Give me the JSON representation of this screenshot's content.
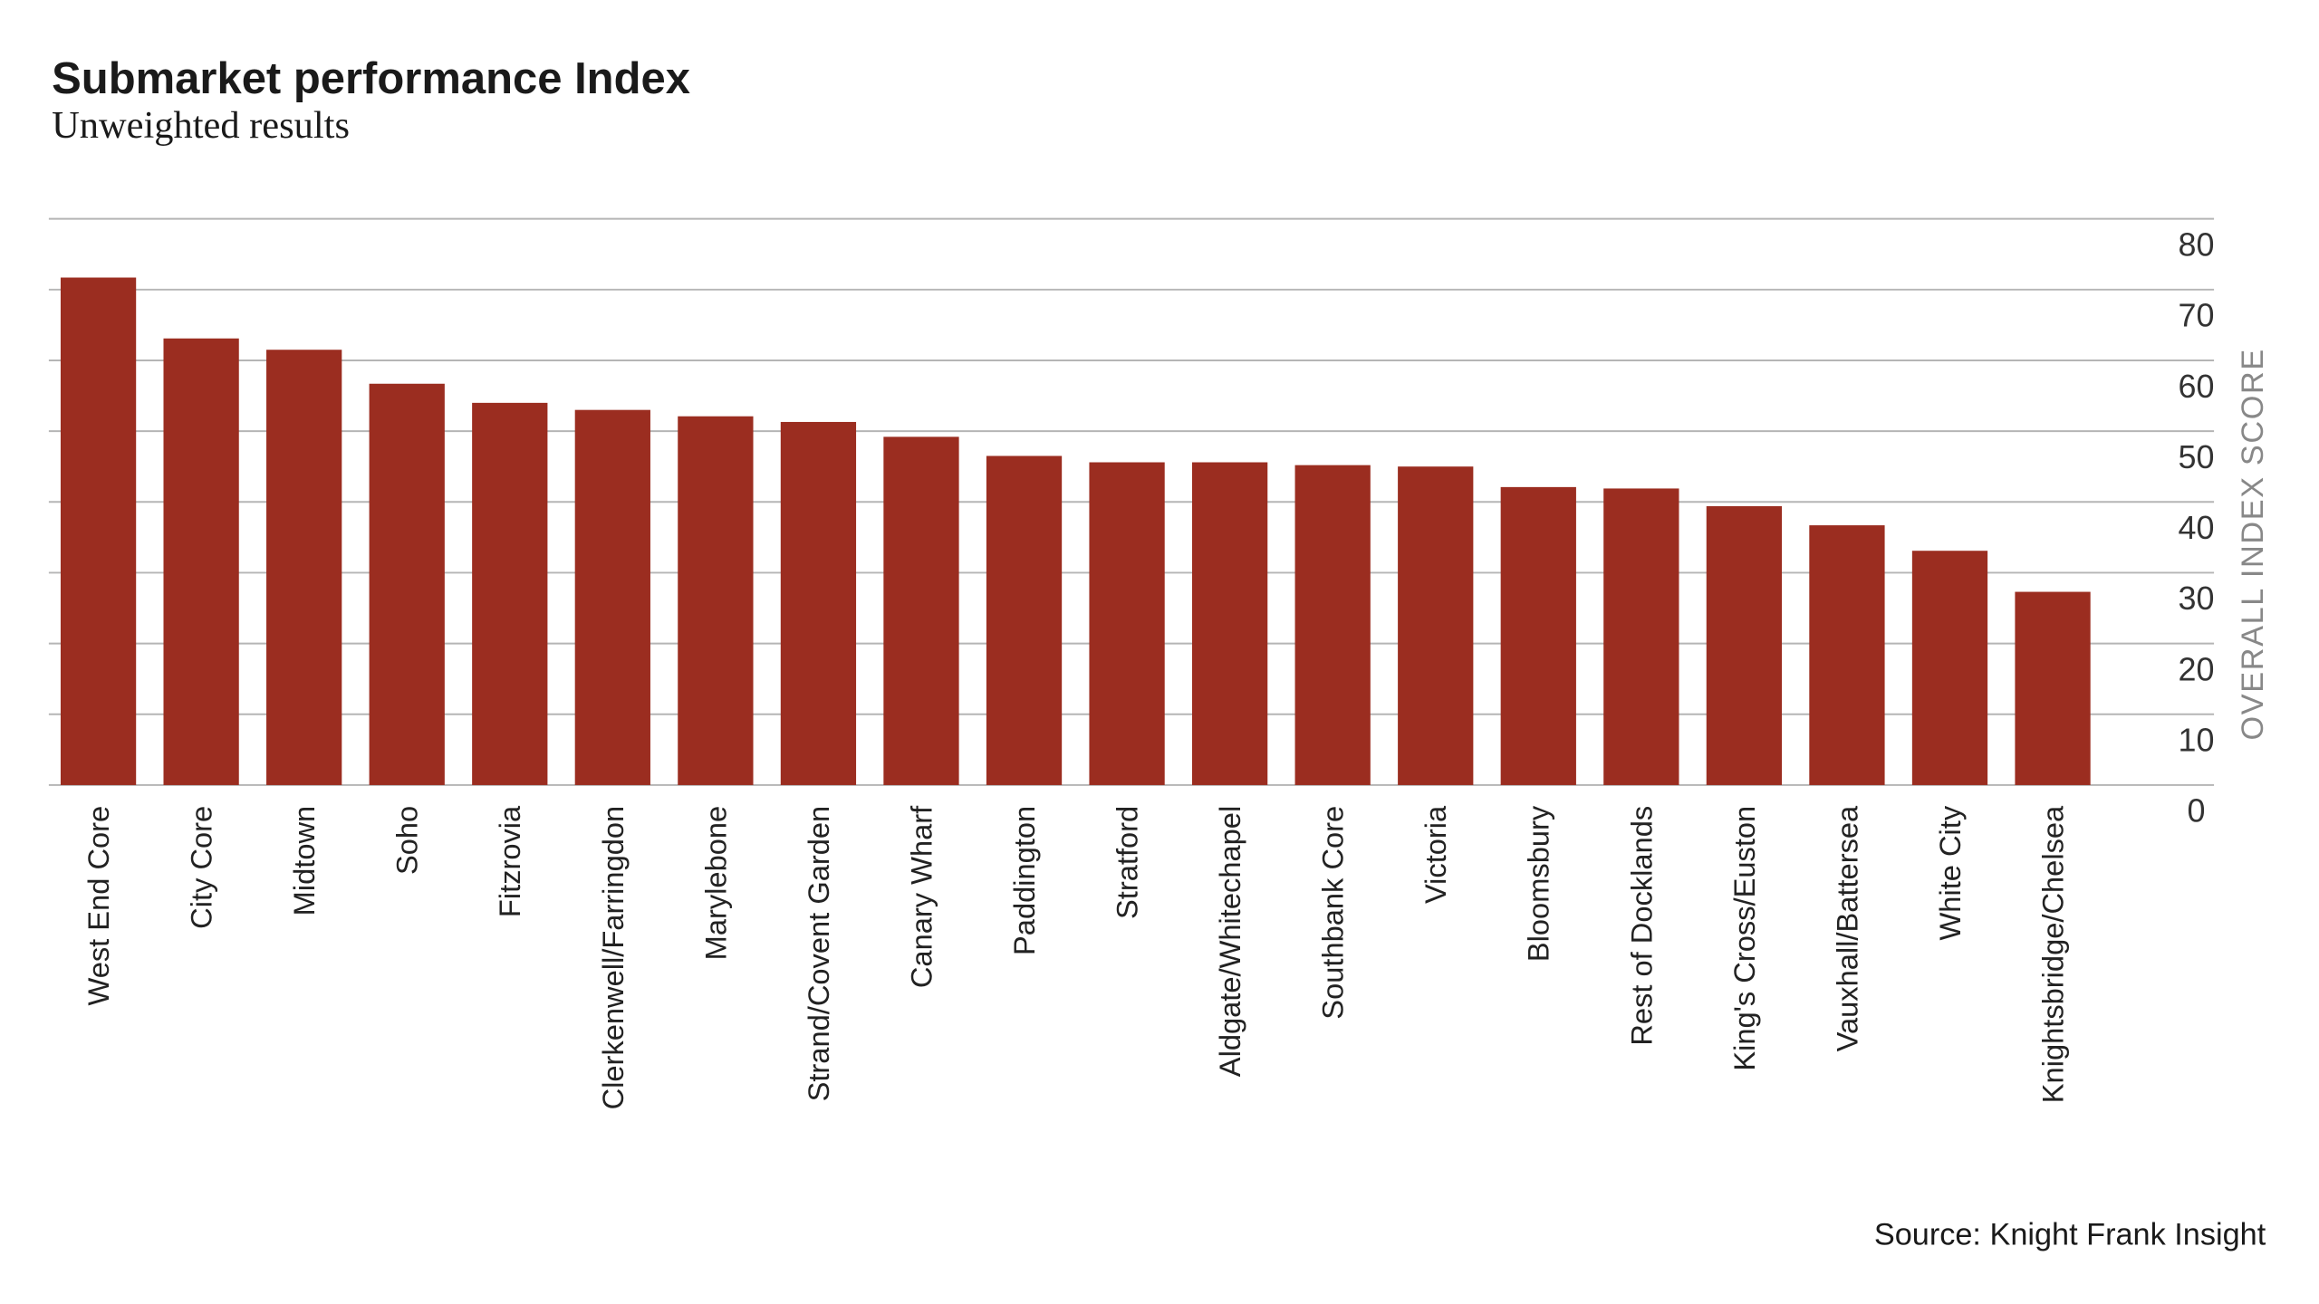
{
  "chart_data": {
    "type": "bar",
    "title": "Submarket performance Index",
    "subtitle": "Unweighted results",
    "y_axis_label": "OVERALL INDEX SCORE",
    "source": "Source: Knight Frank Insight",
    "categories": [
      "West End Core",
      "City Core",
      "Midtown",
      "Soho",
      "Fitzrovia",
      "Clerkenwell/Farringdon",
      "Marylebone",
      "Strand/Covent Garden",
      "Canary Wharf",
      "Paddington",
      "Stratford",
      "Aldgate/Whitechapel",
      "Southbank Core",
      "Victoria",
      "Bloomsbury",
      "Rest of Docklands",
      "King's Cross/Euston",
      "Vauxhall/Battersea",
      "White City",
      "Knightsbridge/Chelsea"
    ],
    "values": [
      71.7,
      63.1,
      61.5,
      56.7,
      54,
      53,
      52.1,
      51.3,
      49.2,
      46.5,
      45.6,
      45.6,
      45.2,
      45,
      42.1,
      41.9,
      39.4,
      36.7,
      33.1,
      27.3
    ],
    "color": "#9b2d20",
    "ylim": [
      0,
      80
    ],
    "yticks": [
      0,
      10,
      20,
      30,
      40,
      50,
      60,
      70,
      80
    ],
    "y_axis_side": "right",
    "grid": true
  }
}
